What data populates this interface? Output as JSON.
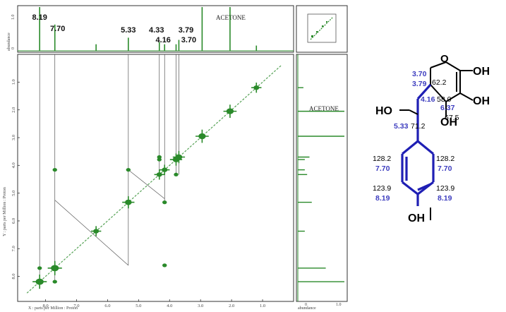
{
  "chart_data": [
    {
      "type": "scatter",
      "experiment": "COSY",
      "xlabel": "X : parts per Million : Proton",
      "ylabel": "Y : parts per Million : Proton",
      "top_axis_label": "abundance",
      "top_axis_ticks": [
        "0",
        "1.0"
      ],
      "right_axis_label": "abundance",
      "right_axis_ticks": [
        "0",
        "1.0"
      ],
      "x_ticks": [
        "8.0",
        "7.0",
        "6.0",
        "5.0",
        "4.0",
        "3.0",
        "2.0",
        "1.0"
      ],
      "y_ticks": [
        "1.0",
        "2.0",
        "3.0",
        "4.0",
        "5.0",
        "6.0",
        "7.0",
        "8.0"
      ],
      "xlim": [
        8.9,
        0.0
      ],
      "ylim": [
        0.0,
        8.9
      ],
      "solvent_label_top": "ACETONE",
      "solvent_label_right": "ACETONE",
      "peak_labels": [
        {
          "text": "8.19",
          "ppm": 8.19
        },
        {
          "text": "7.70",
          "ppm": 7.7
        },
        {
          "text": "5.33",
          "ppm": 5.33
        },
        {
          "text": "4.33",
          "ppm": 4.33
        },
        {
          "text": "4.16",
          "ppm": 4.16
        },
        {
          "text": "3.79",
          "ppm": 3.79
        },
        {
          "text": "3.70",
          "ppm": 3.7
        }
      ],
      "diagonal_peaks": [
        {
          "x": 8.19,
          "y": 8.19,
          "size": 1.4
        },
        {
          "x": 7.7,
          "y": 7.7,
          "size": 1.4
        },
        {
          "x": 6.37,
          "y": 6.37,
          "size": 1.0
        },
        {
          "x": 5.33,
          "y": 5.33,
          "size": 1.2
        },
        {
          "x": 4.33,
          "y": 4.33,
          "size": 1.0
        },
        {
          "x": 4.16,
          "y": 4.16,
          "size": 1.0
        },
        {
          "x": 3.79,
          "y": 3.79,
          "size": 1.2
        },
        {
          "x": 3.7,
          "y": 3.7,
          "size": 1.2
        },
        {
          "x": 2.95,
          "y": 2.95,
          "size": 1.3
        },
        {
          "x": 2.05,
          "y": 2.05,
          "size": 1.3
        },
        {
          "x": 1.2,
          "y": 1.2,
          "size": 1.0
        }
      ],
      "cross_peaks": [
        {
          "x": 8.19,
          "y": 7.7
        },
        {
          "x": 7.7,
          "y": 8.19
        },
        {
          "x": 7.7,
          "y": 4.16
        },
        {
          "x": 5.33,
          "y": 4.16
        },
        {
          "x": 4.16,
          "y": 5.33
        },
        {
          "x": 4.33,
          "y": 3.7
        },
        {
          "x": 4.33,
          "y": 3.79
        },
        {
          "x": 3.79,
          "y": 4.33
        },
        {
          "x": 4.16,
          "y": 7.6
        },
        {
          "x": 2.95,
          "y": 2.95
        }
      ],
      "correlation_lines": [
        {
          "x1": 7.7,
          "y1": 5.25,
          "x2": 5.33,
          "y2": 7.6
        },
        {
          "x1": 5.33,
          "y1": 4.16,
          "x2": 4.16,
          "y2": 5.2
        }
      ],
      "projection_peaks": [
        {
          "ppm": 8.19,
          "height": 1.0
        },
        {
          "ppm": 7.7,
          "height": 0.6
        },
        {
          "ppm": 6.37,
          "height": 0.15
        },
        {
          "ppm": 5.33,
          "height": 0.3
        },
        {
          "ppm": 4.33,
          "height": 0.2
        },
        {
          "ppm": 4.16,
          "height": 0.15
        },
        {
          "ppm": 3.79,
          "height": 0.15
        },
        {
          "ppm": 3.7,
          "height": 0.25
        },
        {
          "ppm": 2.95,
          "height": 1.0
        },
        {
          "ppm": 2.05,
          "height": 1.0
        },
        {
          "ppm": 1.2,
          "height": 0.12
        }
      ]
    }
  ],
  "structure": {
    "atoms": {
      "ring_o": "O",
      "oh_top_right": "OH",
      "oh_right": "OH",
      "oh_bottom": "OH",
      "ho_left": "HO",
      "oh_phenyl": "OH"
    },
    "assignments": [
      {
        "h": "3.70",
        "c": ""
      },
      {
        "h": "3.79",
        "c": "62.2"
      },
      {
        "h": "4.16",
        "c": "58.0"
      },
      {
        "h": "6.37",
        "c": "67.5"
      },
      {
        "h": "5.33",
        "c": "71.2"
      },
      {
        "h": "7.70",
        "c": "128.2"
      },
      {
        "h": "8.19",
        "c": "123.9"
      }
    ],
    "colors": {
      "bonds": "#000000",
      "highlight": "#1f1fb4",
      "h_shift": "#3d3dbf",
      "c_shift": "#000000"
    }
  }
}
